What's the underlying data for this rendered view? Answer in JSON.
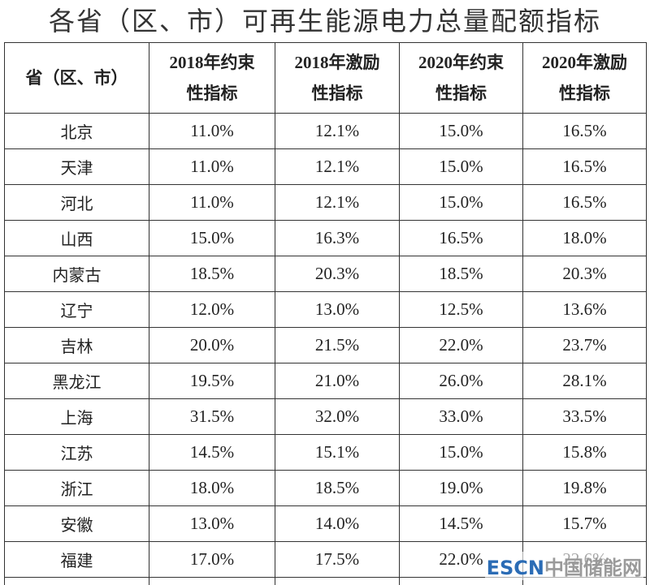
{
  "title": "各省（区、市）可再生能源电力总量配额指标",
  "table": {
    "header": [
      [
        "省（区、市）"
      ],
      [
        "2018年约束",
        "性指标"
      ],
      [
        "2018年激励",
        "性指标"
      ],
      [
        "2020年约束",
        "性指标"
      ],
      [
        "2020年激励",
        "性指标"
      ]
    ],
    "rows": [
      [
        "北京",
        "11.0%",
        "12.1%",
        "15.0%",
        "16.5%"
      ],
      [
        "天津",
        "11.0%",
        "12.1%",
        "15.0%",
        "16.5%"
      ],
      [
        "河北",
        "11.0%",
        "12.1%",
        "15.0%",
        "16.5%"
      ],
      [
        "山西",
        "15.0%",
        "16.3%",
        "16.5%",
        "18.0%"
      ],
      [
        "内蒙古",
        "18.5%",
        "20.3%",
        "18.5%",
        "20.3%"
      ],
      [
        "辽宁",
        "12.0%",
        "13.0%",
        "12.5%",
        "13.6%"
      ],
      [
        "吉林",
        "20.0%",
        "21.5%",
        "22.0%",
        "23.7%"
      ],
      [
        "黑龙江",
        "19.5%",
        "21.0%",
        "26.0%",
        "28.1%"
      ],
      [
        "上海",
        "31.5%",
        "32.0%",
        "33.0%",
        "33.5%"
      ],
      [
        "江苏",
        "14.5%",
        "15.1%",
        "15.0%",
        "15.8%"
      ],
      [
        "浙江",
        "18.0%",
        "18.5%",
        "19.0%",
        "19.8%"
      ],
      [
        "安徽",
        "13.0%",
        "14.0%",
        "14.5%",
        "15.7%"
      ],
      [
        "福建",
        "17.0%",
        "17.5%",
        "22.0%",
        "22.6%"
      ]
    ]
  },
  "watermark": {
    "brand": "ESCN",
    "site": "中国储能网"
  }
}
